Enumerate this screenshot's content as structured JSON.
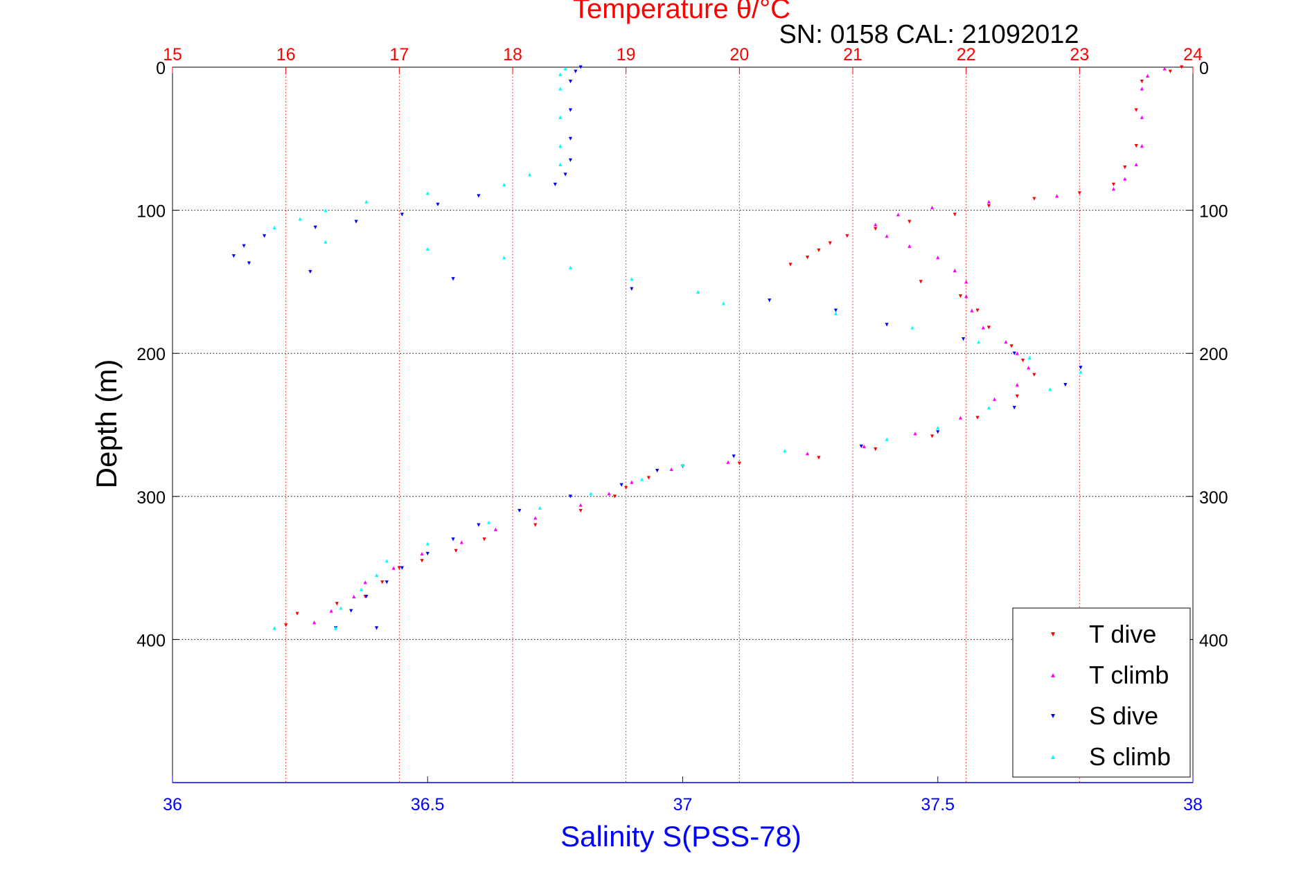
{
  "chart_data": {
    "type": "scatter",
    "title": "Temperature θ/°C",
    "subtitle": "SN: 0158  CAL: 21092012",
    "ylabel": "Depth (m)",
    "xlabel_bottom": "Salinity S(PSS-78)",
    "xlabel_top": "Temperature θ/°C",
    "y_range": [
      0,
      500
    ],
    "y_reversed": true,
    "y_ticks": [
      0,
      100,
      200,
      300,
      400
    ],
    "x_bottom_range": [
      36,
      38
    ],
    "x_bottom_ticks": [
      36,
      36.5,
      37,
      37.5,
      38
    ],
    "x_top_range": [
      15,
      24
    ],
    "x_top_ticks": [
      15,
      16,
      17,
      18,
      19,
      20,
      21,
      22,
      23,
      24
    ],
    "grid": true,
    "legend_position": "bottom-right",
    "colors": {
      "t_dive": "#ff0000",
      "t_climb": "#ff00ff",
      "s_dive": "#0000ff",
      "s_climb": "#00ffff",
      "top_axis": "#ff0000",
      "bottom_axis": "#0000ff"
    },
    "series": [
      {
        "name": "T dive",
        "axis": "top",
        "marker": "triangle-down",
        "color": "#ff0000",
        "points": [
          [
            23.9,
            0
          ],
          [
            23.8,
            3
          ],
          [
            23.55,
            10
          ],
          [
            23.5,
            30
          ],
          [
            23.5,
            55
          ],
          [
            23.4,
            70
          ],
          [
            23.3,
            82
          ],
          [
            23.0,
            88
          ],
          [
            22.6,
            92
          ],
          [
            22.2,
            97
          ],
          [
            21.9,
            103
          ],
          [
            21.5,
            108
          ],
          [
            21.2,
            113
          ],
          [
            20.95,
            118
          ],
          [
            20.8,
            123
          ],
          [
            20.7,
            128
          ],
          [
            20.6,
            133
          ],
          [
            20.45,
            138
          ],
          [
            21.6,
            150
          ],
          [
            21.95,
            160
          ],
          [
            22.1,
            170
          ],
          [
            22.2,
            182
          ],
          [
            22.4,
            195
          ],
          [
            22.5,
            205
          ],
          [
            22.6,
            215
          ],
          [
            22.45,
            230
          ],
          [
            22.1,
            245
          ],
          [
            21.7,
            258
          ],
          [
            21.2,
            267
          ],
          [
            20.7,
            273
          ],
          [
            20.0,
            277
          ],
          [
            19.5,
            279
          ],
          [
            19.2,
            287
          ],
          [
            19.0,
            294
          ],
          [
            18.9,
            300
          ],
          [
            18.6,
            310
          ],
          [
            18.2,
            320
          ],
          [
            17.75,
            330
          ],
          [
            17.5,
            338
          ],
          [
            17.2,
            345
          ],
          [
            17.0,
            350
          ],
          [
            16.85,
            360
          ],
          [
            16.7,
            370
          ],
          [
            16.45,
            375
          ],
          [
            16.1,
            382
          ],
          [
            16.0,
            390
          ]
        ]
      },
      {
        "name": "T climb",
        "axis": "top",
        "marker": "triangle-up",
        "color": "#ff00ff",
        "points": [
          [
            23.75,
            1
          ],
          [
            23.6,
            6
          ],
          [
            23.55,
            15
          ],
          [
            23.55,
            35
          ],
          [
            23.55,
            55
          ],
          [
            23.5,
            68
          ],
          [
            23.4,
            78
          ],
          [
            23.3,
            85
          ],
          [
            22.8,
            90
          ],
          [
            22.2,
            94
          ],
          [
            21.7,
            98
          ],
          [
            21.4,
            103
          ],
          [
            21.2,
            110
          ],
          [
            21.3,
            118
          ],
          [
            21.5,
            125
          ],
          [
            21.75,
            133
          ],
          [
            21.9,
            142
          ],
          [
            22.0,
            150
          ],
          [
            22.0,
            160
          ],
          [
            22.05,
            170
          ],
          [
            22.15,
            182
          ],
          [
            22.35,
            192
          ],
          [
            22.45,
            200
          ],
          [
            22.55,
            210
          ],
          [
            22.45,
            222
          ],
          [
            22.25,
            232
          ],
          [
            21.95,
            245
          ],
          [
            21.55,
            256
          ],
          [
            21.1,
            265
          ],
          [
            20.6,
            270
          ],
          [
            19.9,
            276
          ],
          [
            19.4,
            281
          ],
          [
            19.05,
            290
          ],
          [
            18.85,
            298
          ],
          [
            18.6,
            306
          ],
          [
            18.2,
            315
          ],
          [
            17.85,
            323
          ],
          [
            17.55,
            332
          ],
          [
            17.2,
            340
          ],
          [
            16.95,
            350
          ],
          [
            16.7,
            360
          ],
          [
            16.6,
            370
          ],
          [
            16.4,
            380
          ],
          [
            16.25,
            388
          ],
          [
            15.9,
            392
          ]
        ]
      },
      {
        "name": "S dive",
        "axis": "bottom",
        "marker": "triangle-down",
        "color": "#0000ff",
        "points": [
          [
            36.8,
            0
          ],
          [
            36.79,
            3
          ],
          [
            36.78,
            10
          ],
          [
            36.78,
            30
          ],
          [
            36.78,
            50
          ],
          [
            36.78,
            65
          ],
          [
            36.77,
            75
          ],
          [
            36.75,
            82
          ],
          [
            36.6,
            90
          ],
          [
            36.52,
            96
          ],
          [
            36.45,
            103
          ],
          [
            36.36,
            108
          ],
          [
            36.28,
            112
          ],
          [
            36.18,
            118
          ],
          [
            36.14,
            125
          ],
          [
            36.12,
            132
          ],
          [
            36.15,
            137
          ],
          [
            36.27,
            143
          ],
          [
            36.55,
            148
          ],
          [
            36.9,
            155
          ],
          [
            37.17,
            163
          ],
          [
            37.3,
            170
          ],
          [
            37.4,
            180
          ],
          [
            37.55,
            190
          ],
          [
            37.65,
            200
          ],
          [
            37.78,
            210
          ],
          [
            37.75,
            222
          ],
          [
            37.65,
            238
          ],
          [
            37.5,
            255
          ],
          [
            37.35,
            265
          ],
          [
            37.1,
            272
          ],
          [
            36.95,
            282
          ],
          [
            36.88,
            292
          ],
          [
            36.78,
            300
          ],
          [
            36.68,
            310
          ],
          [
            36.6,
            320
          ],
          [
            36.55,
            330
          ],
          [
            36.5,
            340
          ],
          [
            36.45,
            350
          ],
          [
            36.42,
            360
          ],
          [
            36.38,
            370
          ],
          [
            36.35,
            380
          ],
          [
            36.32,
            392
          ],
          [
            36.4,
            392
          ]
        ]
      },
      {
        "name": "S climb",
        "axis": "bottom",
        "marker": "triangle-up",
        "color": "#00ffff",
        "points": [
          [
            36.77,
            1
          ],
          [
            36.76,
            5
          ],
          [
            36.76,
            15
          ],
          [
            36.76,
            35
          ],
          [
            36.76,
            55
          ],
          [
            36.76,
            68
          ],
          [
            36.7,
            75
          ],
          [
            36.65,
            82
          ],
          [
            36.5,
            88
          ],
          [
            36.38,
            94
          ],
          [
            36.3,
            100
          ],
          [
            36.25,
            106
          ],
          [
            36.2,
            112
          ],
          [
            36.3,
            122
          ],
          [
            36.5,
            127
          ],
          [
            36.65,
            133
          ],
          [
            36.78,
            140
          ],
          [
            36.9,
            148
          ],
          [
            37.03,
            157
          ],
          [
            37.08,
            165
          ],
          [
            37.3,
            172
          ],
          [
            37.45,
            182
          ],
          [
            37.58,
            192
          ],
          [
            37.68,
            203
          ],
          [
            37.78,
            213
          ],
          [
            37.72,
            225
          ],
          [
            37.6,
            238
          ],
          [
            37.5,
            252
          ],
          [
            37.4,
            260
          ],
          [
            37.2,
            268
          ],
          [
            37.0,
            278
          ],
          [
            36.92,
            288
          ],
          [
            36.82,
            298
          ],
          [
            36.72,
            308
          ],
          [
            36.62,
            318
          ],
          [
            36.5,
            333
          ],
          [
            36.42,
            345
          ],
          [
            36.4,
            355
          ],
          [
            36.37,
            365
          ],
          [
            36.33,
            378
          ],
          [
            36.32,
            392
          ],
          [
            36.2,
            392
          ]
        ]
      }
    ]
  }
}
